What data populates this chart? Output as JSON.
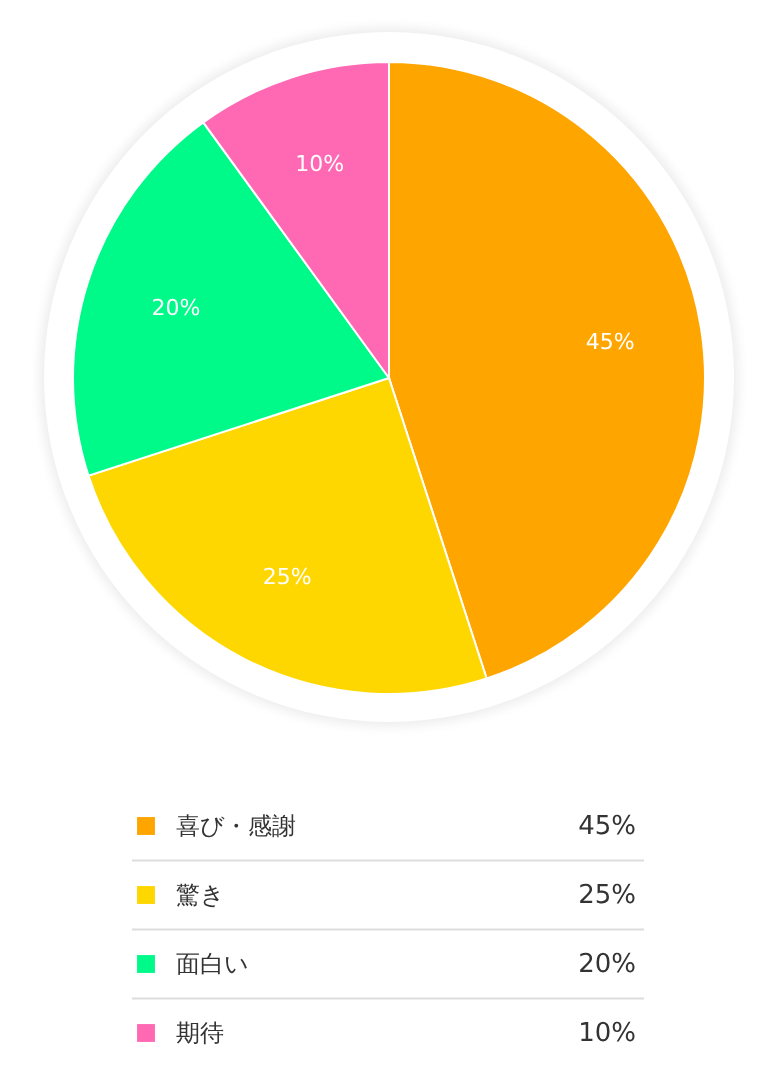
{
  "chart_data": {
    "type": "pie",
    "categories": [
      "喜び・感謝",
      "驚き",
      "面白い",
      "期待"
    ],
    "values": [
      45,
      25,
      20,
      10
    ],
    "colors": [
      "#ffa500",
      "#ffd700",
      "#00fa8a",
      "#ff69b4"
    ],
    "value_labels": [
      "45%",
      "25%",
      "20%",
      "10%"
    ],
    "legend": "bottom"
  }
}
